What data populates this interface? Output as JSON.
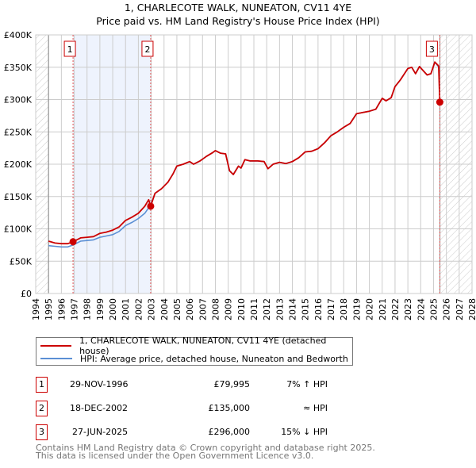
{
  "title_line1": "1, CHARLECOTE WALK, NUNEATON, CV11 4YE",
  "title_line2": "Price paid vs. HM Land Registry's House Price Index (HPI)",
  "chart_data": {
    "type": "line",
    "title": "1, CHARLECOTE WALK, NUNEATON, CV11 4YE — Price paid vs. HM Land Registry's House Price Index (HPI)",
    "xlim": [
      1994,
      2028
    ],
    "ylim": [
      0,
      400000
    ],
    "x_ticks": [
      "1994",
      "1995",
      "1996",
      "1997",
      "1998",
      "1999",
      "2000",
      "2001",
      "2002",
      "2003",
      "2004",
      "2005",
      "2006",
      "2007",
      "2008",
      "2009",
      "2010",
      "2011",
      "2012",
      "2013",
      "2014",
      "2015",
      "2016",
      "2017",
      "2018",
      "2019",
      "2020",
      "2021",
      "2022",
      "2023",
      "2024",
      "2025",
      "2026",
      "2027",
      "2028"
    ],
    "y_ticks": [
      {
        "v": 0,
        "label": "£0"
      },
      {
        "v": 50000,
        "label": "£50K"
      },
      {
        "v": 100000,
        "label": "£100K"
      },
      {
        "v": 150000,
        "label": "£150K"
      },
      {
        "v": 200000,
        "label": "£200K"
      },
      {
        "v": 250000,
        "label": "£250K"
      },
      {
        "v": 300000,
        "label": "£300K"
      },
      {
        "v": 350000,
        "label": "£350K"
      },
      {
        "v": 400000,
        "label": "£400K"
      }
    ],
    "grid": true,
    "series": [
      {
        "name": "1, CHARLECOTE WALK, NUNEATON, CV11 4YE (detached house)",
        "color": "#cc0000",
        "x": [
          1995,
          1995.5,
          1996,
          1996.5,
          1996.91,
          1997.5,
          1998,
          1998.5,
          1999,
          1999.5,
          2000,
          2000.5,
          2001,
          2001.5,
          2002,
          2002.5,
          2002.8,
          2002.96,
          2003.3,
          2003.8,
          2004.3,
          2004.7,
          2005,
          2005.5,
          2006,
          2006.3,
          2006.8,
          2007.3,
          2007.8,
          2008,
          2008.4,
          2008.8,
          2009.1,
          2009.4,
          2009.8,
          2010,
          2010.3,
          2010.7,
          2011.3,
          2011.8,
          2012.1,
          2012.5,
          2013,
          2013.5,
          2014,
          2014.5,
          2015,
          2015.5,
          2016,
          2016.5,
          2017,
          2017.5,
          2018,
          2018.5,
          2019,
          2019.5,
          2020,
          2020.5,
          2021,
          2021.3,
          2021.7,
          2022,
          2022.4,
          2023,
          2023.3,
          2023.6,
          2023.9,
          2024.5,
          2024.8,
          2025.1,
          2025.4,
          2025.49
        ],
        "values": [
          81000,
          78000,
          77000,
          77000,
          79995,
          86000,
          87000,
          88000,
          93000,
          95000,
          98000,
          103000,
          113000,
          118000,
          124000,
          135000,
          145000,
          135000,
          155000,
          162000,
          172000,
          185000,
          197000,
          200000,
          204000,
          200000,
          205000,
          212000,
          218000,
          221000,
          217000,
          216000,
          190000,
          184000,
          197000,
          194000,
          207000,
          205000,
          205000,
          204000,
          193000,
          200000,
          203000,
          201000,
          204000,
          210000,
          219000,
          220000,
          224000,
          233000,
          244000,
          250000,
          257000,
          263000,
          278000,
          280000,
          282000,
          285000,
          302000,
          298000,
          303000,
          320000,
          330000,
          348000,
          350000,
          340000,
          351000,
          338000,
          340000,
          358000,
          352000,
          296000
        ]
      },
      {
        "name": "HPI: Average price, detached house, Nuneaton and Bedworth",
        "color": "#5b8fd4",
        "x": [
          1995,
          1995.5,
          1996,
          1996.5,
          1996.91,
          1997.5,
          1998,
          1998.5,
          1999,
          1999.5,
          2000,
          2000.5,
          2001,
          2001.5,
          2002,
          2002.5,
          2002.96,
          2003.3,
          2003.8,
          2004.3,
          2004.7,
          2005,
          2005.5,
          2006,
          2006.3,
          2006.8,
          2007.3,
          2007.8,
          2008,
          2008.4,
          2008.8,
          2009.1,
          2009.4,
          2009.8,
          2010,
          2010.3,
          2010.7,
          2011.3,
          2011.8,
          2012.1,
          2012.5,
          2013,
          2013.5,
          2014,
          2014.5,
          2015,
          2015.5,
          2016,
          2016.5,
          2017,
          2017.5,
          2018,
          2018.5,
          2019,
          2019.5,
          2020,
          2020.5,
          2021,
          2021.3,
          2021.7,
          2022,
          2022.4,
          2023,
          2023.3,
          2023.6,
          2023.9,
          2024.5,
          2024.8,
          2025.1,
          2025.49
        ],
        "values": [
          74000,
          73000,
          72000,
          72000,
          75000,
          81000,
          82000,
          83000,
          87000,
          89000,
          91000,
          96000,
          105000,
          110000,
          116000,
          124000,
          137000,
          155000,
          162000,
          172000,
          185000,
          197000,
          200000,
          204000,
          200000,
          205000,
          212000,
          218000,
          221000,
          217000,
          216000,
          190000,
          184000,
          197000,
          194000,
          207000,
          205000,
          205000,
          204000,
          193000,
          200000,
          203000,
          201000,
          204000,
          210000,
          219000,
          220000,
          224000,
          233000,
          244000,
          250000,
          257000,
          263000,
          278000,
          280000,
          282000,
          285000,
          302000,
          298000,
          303000,
          320000,
          330000,
          348000,
          350000,
          340000,
          351000,
          338000,
          340000,
          358000,
          348000
        ]
      }
    ],
    "sales": [
      {
        "n": "1",
        "x": 1996.91,
        "value": 79995,
        "date": "29-NOV-1996",
        "price": "£79,995",
        "hpi": "7% ↑ HPI"
      },
      {
        "n": "2",
        "x": 2002.96,
        "value": 135000,
        "date": "18-DEC-2002",
        "price": "£135,000",
        "hpi": "≈ HPI"
      },
      {
        "n": "3",
        "x": 2025.49,
        "value": 296000,
        "date": "27-JUN-2025",
        "price": "£296,000",
        "hpi": "15% ↓ HPI"
      }
    ],
    "hatched_before": 1995,
    "hatched_after": 2025.5,
    "legend_position": "below"
  },
  "footer_line1": "Contains HM Land Registry data © Crown copyright and database right 2025.",
  "footer_line2": "This data is licensed under the Open Government Licence v3.0."
}
